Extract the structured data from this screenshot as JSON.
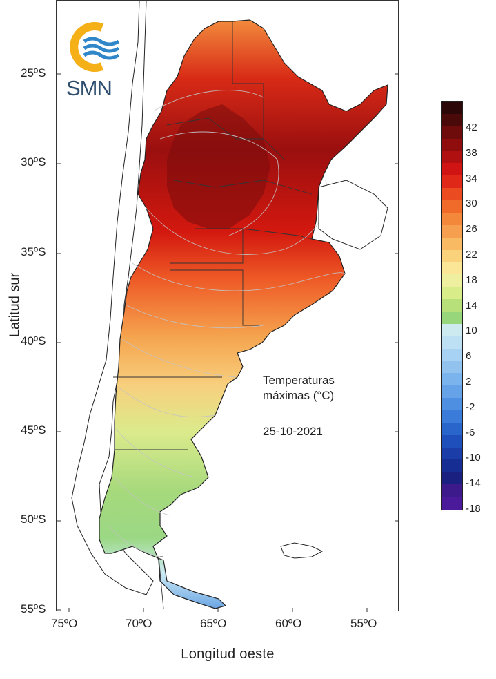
{
  "map": {
    "lat_labels": [
      "25ºS",
      "30ºS",
      "35ºS",
      "40ºS",
      "45ºS",
      "50ºS",
      "55ºS"
    ],
    "lon_labels": [
      "75ºO",
      "70ºO",
      "65ºO",
      "60ºO",
      "55ºO"
    ],
    "ylabel": "Latitud sur",
    "xlabel": "Longitud oeste",
    "annotation": {
      "line1": "Temperaturas",
      "line2": "máximas (°C)",
      "date": "25-10-2021"
    },
    "logo_text": "SMN",
    "colors": {
      "land_outline": "#222222",
      "isolines": "#b8b8b8"
    }
  },
  "colorbar": {
    "labels": [
      "42",
      "38",
      "34",
      "30",
      "26",
      "22",
      "18",
      "14",
      "10",
      "6",
      "2",
      "-2",
      "-6",
      "-10",
      "-14",
      "-18"
    ],
    "colors": [
      "#2b0707",
      "#4a0a0a",
      "#6e0c0c",
      "#8f0d0d",
      "#b01010",
      "#d01414",
      "#e02818",
      "#ea4b20",
      "#f06a2a",
      "#f4883a",
      "#f6a04f",
      "#f8bb63",
      "#fad27c",
      "#fbe596",
      "#eef0a0",
      "#d8ec8a",
      "#b8e07a",
      "#97d67a",
      "#cdeaf0",
      "#bde0f5",
      "#a8d2f3",
      "#92c3ef",
      "#7bb3ec",
      "#66a2e8",
      "#4f8fe2",
      "#3b7bd9",
      "#2a65cc",
      "#1f4fba",
      "#1a3da8",
      "#162e94",
      "#1a2080",
      "#3d1a8c",
      "#4a1a9a"
    ]
  }
}
